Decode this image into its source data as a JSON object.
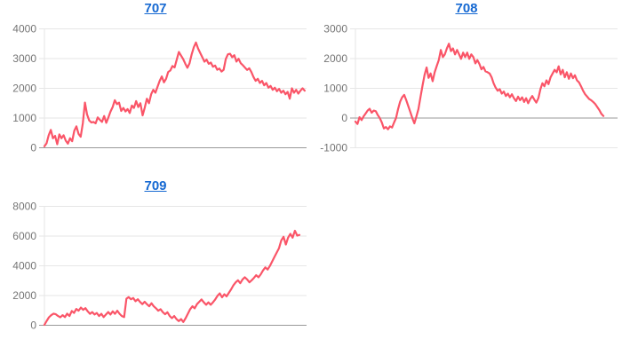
{
  "colors": {
    "line": "#fa5568",
    "title_link": "#1669d2",
    "axis_label": "#757575",
    "gridline": "#e6e6e6",
    "baseline": "#999999",
    "background": "#ffffff"
  },
  "chart_data": [
    {
      "type": "line",
      "title": "707",
      "xlabel": "",
      "ylabel": "",
      "legend": "none",
      "grid": true,
      "ylim": [
        0,
        4000
      ],
      "y_ticks": [
        4000,
        3000,
        2000,
        1000,
        0
      ],
      "baseline_value": 0,
      "end_fraction": 0.993,
      "values": [
        50,
        150,
        420,
        600,
        320,
        400,
        120,
        450,
        320,
        420,
        240,
        140,
        320,
        220,
        570,
        720,
        470,
        370,
        820,
        1520,
        1120,
        920,
        850,
        870,
        820,
        1020,
        940,
        870,
        1070,
        840,
        1020,
        1220,
        1370,
        1600,
        1470,
        1520,
        1240,
        1340,
        1220,
        1300,
        1170,
        1420,
        1340,
        1570,
        1370,
        1500,
        1090,
        1350,
        1650,
        1500,
        1800,
        1950,
        1850,
        2050,
        2250,
        2400,
        2200,
        2320,
        2550,
        2600,
        2750,
        2700,
        2965,
        3225,
        3100,
        2985,
        2830,
        2690,
        2840,
        3140,
        3380,
        3540,
        3340,
        3190,
        3045,
        2895,
        2965,
        2825,
        2865,
        2725,
        2765,
        2625,
        2665,
        2565,
        2625,
        2985,
        3144,
        3160,
        3045,
        3114,
        2900,
        2995,
        2845,
        2776,
        2696,
        2617,
        2676,
        2546,
        2380,
        2250,
        2320,
        2180,
        2250,
        2100,
        2180,
        2020,
        2080,
        1950,
        2020,
        1900,
        1980,
        1850,
        1920,
        1800,
        1880,
        1650,
        2000,
        1850,
        1950,
        1820,
        1920,
        2000,
        1920
      ]
    },
    {
      "type": "line",
      "title": "708",
      "xlabel": "",
      "ylabel": "",
      "legend": "none",
      "grid": true,
      "ylim": [
        -1000,
        3000
      ],
      "y_ticks": [
        3000,
        2000,
        1000,
        0,
        -1000
      ],
      "baseline_value": 0,
      "end_fraction": 0.946,
      "values": [
        -120,
        -200,
        30,
        -70,
        50,
        150,
        250,
        310,
        180,
        250,
        230,
        100,
        0,
        -150,
        -350,
        -300,
        -380,
        -280,
        -320,
        -150,
        0,
        300,
        550,
        700,
        780,
        600,
        400,
        200,
        0,
        -180,
        50,
        300,
        700,
        1090,
        1450,
        1700,
        1350,
        1500,
        1240,
        1540,
        1750,
        1950,
        2290,
        2050,
        2140,
        2340,
        2500,
        2250,
        2340,
        2140,
        2290,
        2140,
        1990,
        2200,
        2050,
        2200,
        1990,
        2140,
        2050,
        1840,
        1950,
        1820,
        1640,
        1720,
        1570,
        1540,
        1500,
        1370,
        1170,
        1020,
        920,
        970,
        820,
        890,
        740,
        820,
        700,
        800,
        670,
        570,
        720,
        600,
        700,
        540,
        670,
        500,
        640,
        740,
        620,
        520,
        670,
        970,
        1170,
        1070,
        1270,
        1140,
        1370,
        1500,
        1620,
        1540,
        1740,
        1470,
        1620,
        1370,
        1540,
        1320,
        1500,
        1340,
        1440,
        1270,
        1200,
        1070,
        920,
        800,
        720,
        640,
        600,
        540,
        470,
        370,
        270,
        140,
        70
      ]
    },
    {
      "type": "line",
      "title": "709",
      "xlabel": "",
      "ylabel": "",
      "legend": "none",
      "grid": true,
      "ylim": [
        0,
        8000
      ],
      "y_ticks": [
        8000,
        6000,
        4000,
        2000,
        0
      ],
      "baseline_value": 0,
      "end_fraction": 0.973,
      "values": [
        30,
        300,
        540,
        680,
        780,
        740,
        620,
        540,
        680,
        550,
        780,
        620,
        960,
        830,
        1100,
        980,
        1190,
        1040,
        1150,
        940,
        770,
        890,
        720,
        830,
        620,
        770,
        550,
        720,
        890,
        720,
        940,
        770,
        980,
        770,
        620,
        550,
        1790,
        1890,
        1750,
        1830,
        1620,
        1750,
        1570,
        1420,
        1580,
        1420,
        1280,
        1480,
        1280,
        1140,
        980,
        1080,
        880,
        740,
        880,
        620,
        480,
        620,
        420,
        280,
        420,
        220,
        480,
        780,
        1080,
        1280,
        1140,
        1420,
        1580,
        1740,
        1540,
        1380,
        1540,
        1380,
        1540,
        1740,
        1985,
        2145,
        1880,
        2085,
        1945,
        2185,
        2425,
        2690,
        2890,
        3025,
        2830,
        3085,
        3230,
        3085,
        2890,
        3025,
        3190,
        3370,
        3230,
        3430,
        3690,
        3890,
        3750,
        3990,
        4290,
        4590,
        4890,
        5190,
        5700,
        5950,
        5430,
        5890,
        6150,
        5890,
        6360,
        6030,
        6075
      ]
    }
  ]
}
